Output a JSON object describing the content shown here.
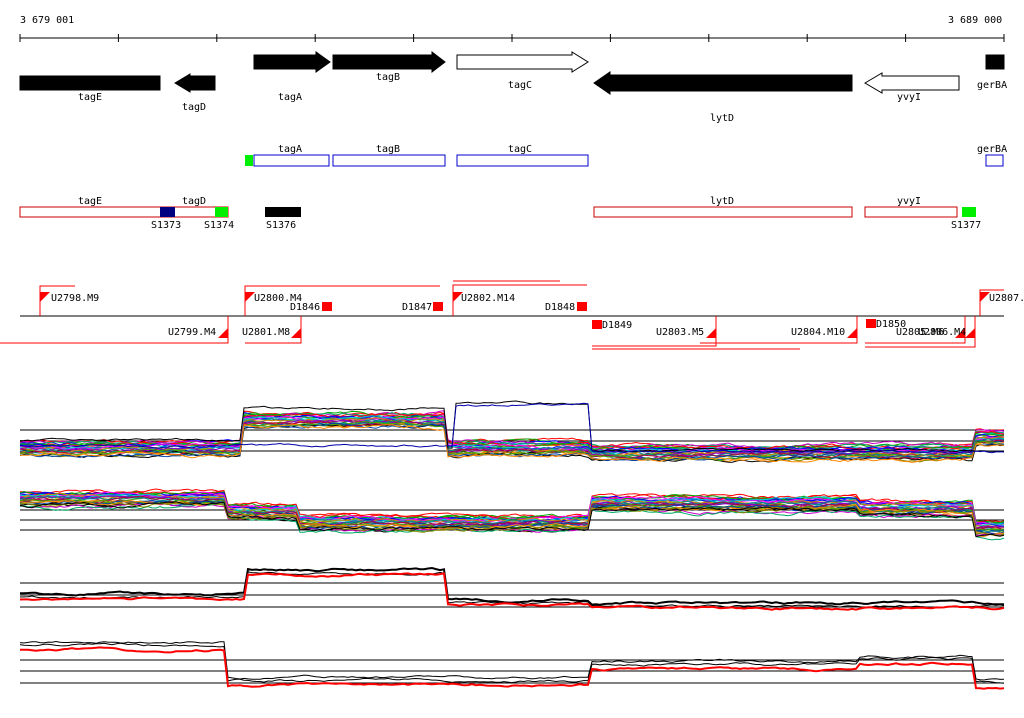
{
  "coords": {
    "start": "3 679 001",
    "end": "3 689 000"
  },
  "genes": [
    {
      "name": "tagE",
      "strand": "-",
      "fill": "#000000"
    },
    {
      "name": "tagD",
      "strand": "-",
      "fill": "#000000"
    },
    {
      "name": "tagA",
      "strand": "+",
      "fill": "#000000"
    },
    {
      "name": "tagB",
      "strand": "+",
      "fill": "#000000"
    },
    {
      "name": "tagC",
      "strand": "+",
      "fill": "#ffffff"
    },
    {
      "name": "lytD",
      "strand": "-",
      "fill": "#000000"
    },
    {
      "name": "yvyI",
      "strand": "-",
      "fill": "#ffffff"
    },
    {
      "name": "gerBA",
      "strand": "+",
      "fill": "#000000"
    }
  ],
  "plus_features": [
    "tagA",
    "tagB",
    "tagC",
    "gerBA"
  ],
  "minus_features": [
    "tagE",
    "tagD",
    "lytD",
    "yvyI"
  ],
  "sites": [
    "S1373",
    "S1374",
    "S1376",
    "S1377"
  ],
  "site_colors": {
    "S1373": "#000080",
    "S1374": "#00ee00",
    "S1376": "#000000",
    "S1377": "#00ee00",
    "plus_marker": "#00ee00"
  },
  "upper_tus": [
    "U2798.M9",
    "U2800.M4",
    "U2802.M14",
    "U2807."
  ],
  "lower_tus": [
    "U2799.M4",
    "U2801.M8",
    "U2803.M5",
    "U2804.M10",
    "U2805.M6",
    "U2806.M4"
  ],
  "d_markers": [
    "D1846",
    "D1847",
    "D1848",
    "D1849",
    "D1850"
  ],
  "colors": {
    "plus_box": "#0000cc",
    "minus_box": "#cc0000",
    "tu": "#ff0000",
    "axis": "#000000"
  }
}
